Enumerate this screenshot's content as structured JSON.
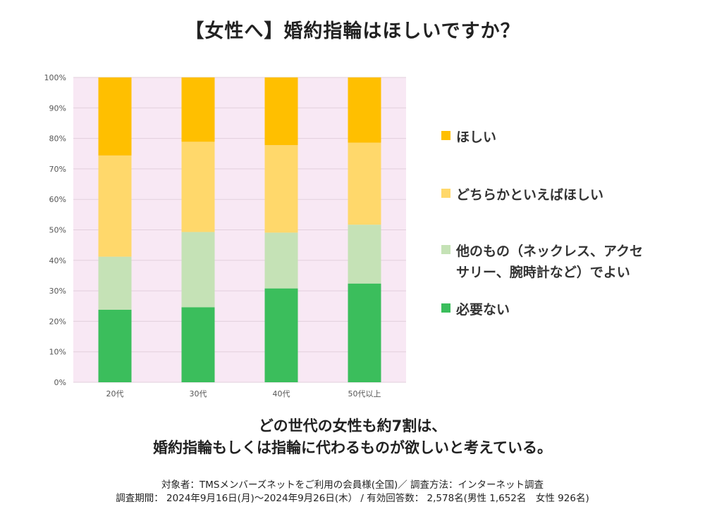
{
  "title": "【女性へ】婚約指輪はほしいですか？",
  "chart_data": {
    "type": "bar",
    "stacked": true,
    "categories": [
      "20代",
      "30代",
      "40代",
      "50代以上"
    ],
    "y_ticks": [
      "0%",
      "10%",
      "20%",
      "30%",
      "40%",
      "50%",
      "60%",
      "70%",
      "80%",
      "90%",
      "100%"
    ],
    "ylim": [
      0,
      100
    ],
    "grid": true,
    "legend_position": "right",
    "series": [
      {
        "name": "必要ない",
        "color": "#3bbe5c",
        "values": [
          23.8,
          24.6,
          30.8,
          32.4
        ]
      },
      {
        "name": "他のもの（ネックレス、アクセ\nサリー、腕時計など）でよい",
        "color": "#c5e2b6",
        "values": [
          17.4,
          24.7,
          18.3,
          19.3
        ]
      },
      {
        "name": "どちらかといえばほしい",
        "color": "#ffd86b",
        "values": [
          33.2,
          29.6,
          28.7,
          26.9
        ]
      },
      {
        "name": "ほしい",
        "color": "#ffbf00",
        "values": [
          25.6,
          21.1,
          22.2,
          21.4
        ]
      }
    ],
    "legend_order": [
      3,
      2,
      1,
      0
    ],
    "plot_background": "#f8e8f4"
  },
  "summary": {
    "line1": "どの世代の女性も約7割は、",
    "line2": "婚約指輪もしくは指輪に代わるものが欲しいと考えている。"
  },
  "notes": {
    "line1": "対象者：TMSメンバーズネットをご利用の会員様(全国)／ 調査方法：インターネット調査",
    "line2": "調査期間： 2024年9月16日(月)～2024年9月26日(木） / 有効回答数： 2,578名(男性 1,652名　女性 926名)"
  }
}
